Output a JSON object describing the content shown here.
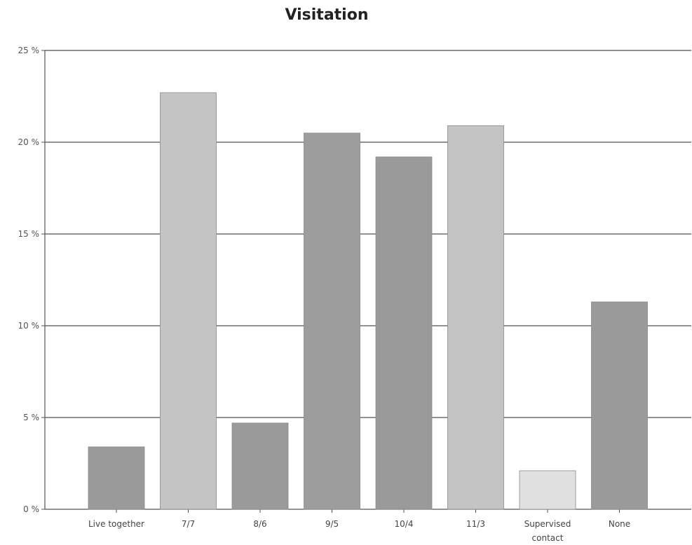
{
  "chart_data": {
    "type": "bar",
    "title": "Visitation",
    "xlabel": "",
    "ylabel": "",
    "ylim": [
      0,
      25
    ],
    "yticks": [
      "0 %",
      "5 %",
      "10 %",
      "15 %",
      "20 %",
      "25 %"
    ],
    "ytick_values": [
      0,
      5,
      10,
      15,
      20,
      25
    ],
    "grid": true,
    "legend": "none",
    "categories": [
      "Live together",
      "7/7",
      "8/6",
      "9/5",
      "10/4",
      "11/3",
      "Supervised contact",
      "None"
    ],
    "category_lines": [
      [
        "Live together"
      ],
      [
        "7/7"
      ],
      [
        "8/6"
      ],
      [
        "9/5"
      ],
      [
        "10/4"
      ],
      [
        "11/3"
      ],
      [
        "Supervised",
        "contact"
      ],
      [
        "None"
      ]
    ],
    "values": [
      3.4,
      22.7,
      4.7,
      20.5,
      19.2,
      20.9,
      2.1,
      11.3
    ],
    "colors": [
      "#9a9a9a",
      "#c4c4c4",
      "#9a9a9a",
      "#9d9d9d",
      "#9a9a9a",
      "#c4c4c4",
      "#e0e0e0",
      "#9a9a9a"
    ]
  }
}
